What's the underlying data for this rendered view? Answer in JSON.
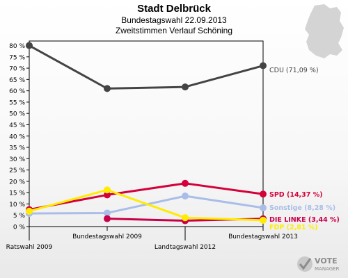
{
  "header": {
    "title": "Stadt Delbrück",
    "subtitle1": "Bundestagswahl 22.09.2013",
    "subtitle2": "Zweitstimmen Verlauf Schöning"
  },
  "logo": {
    "text": "VOTE",
    "subtext": "MANAGER",
    "icon": "vote-checkmark-icon"
  },
  "chart_data": {
    "type": "line",
    "title": "Stadt Delbrück",
    "subtitle": "Bundestagswahl 22.09.2013 — Zweitstimmen Verlauf Schöning",
    "categories": [
      "Ratswahl 2009",
      "Bundestagswahl 2009",
      "Landtagswahl 2012",
      "Bundestagswahl 2013"
    ],
    "ylim": [
      0,
      82
    ],
    "yticks": [
      0,
      5,
      10,
      15,
      20,
      25,
      30,
      35,
      40,
      45,
      50,
      55,
      60,
      65,
      70,
      75,
      80
    ],
    "ytick_labels": [
      "0 %",
      "5 %",
      "10 %",
      "15 %",
      "20 %",
      "25 %",
      "30 %",
      "35 %",
      "40 %",
      "45 %",
      "50 %",
      "55 %",
      "60 %",
      "65 %",
      "70 %",
      "75 %",
      "80 %"
    ],
    "grid": false,
    "legend": "end-labels",
    "series": [
      {
        "name": "CDU",
        "color": "#444444",
        "values": [
          80.0,
          61.0,
          61.7,
          71.09
        ],
        "label": "CDU (71,09 %)"
      },
      {
        "name": "SPD",
        "color": "#d4003a",
        "values": [
          7.5,
          14.0,
          19.1,
          14.37
        ],
        "label": "SPD (14,37 %)"
      },
      {
        "name": "Sonstige",
        "color": "#aabde8",
        "values": [
          5.8,
          6.0,
          13.5,
          8.28
        ],
        "label": "Sonstige (8,28 %)"
      },
      {
        "name": "DIE LINKE",
        "color": "#c8004a",
        "values": [
          null,
          3.5,
          2.6,
          3.44
        ],
        "label": "DIE LINKE (3,44 %)"
      },
      {
        "name": "FDP",
        "color": "#ffec00",
        "values": [
          6.8,
          16.2,
          3.9,
          2.81
        ],
        "label": "FDP (2,81 %)"
      }
    ]
  }
}
